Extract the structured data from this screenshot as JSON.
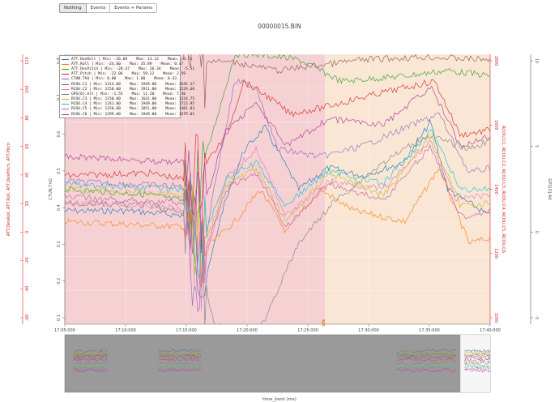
{
  "toolbar": {
    "buttons": [
      {
        "label": "Nothing",
        "active": true
      },
      {
        "label": "Events",
        "active": false
      },
      {
        "label": "Events + Params",
        "active": false
      }
    ]
  },
  "chart_data": {
    "type": "line",
    "title": "00000015.BIN",
    "xlabel": "time_boot (ms)",
    "x_ticks": [
      "17:05:000",
      "17:10:000",
      "17:15:000",
      "17:20:000",
      "17:25:000",
      "17:30:000",
      "17:35:000",
      "17:40:000"
    ],
    "x_range": [
      "17:05:000",
      "17:40:000"
    ],
    "shaded_regions": [
      {
        "start": "17:05:000",
        "end": "17:26:400",
        "color": "#f5c9cd"
      },
      {
        "start": "17:26:400",
        "end": "17:40:000",
        "color": "#f9e2cd"
      }
    ],
    "event_marker": {
      "text": "LTE",
      "x": "17:26:400",
      "color": "#e07b00"
    },
    "axes": [
      {
        "label": "ATT.DesRoll, ATT.Roll, ATT.DesPitch, ATT.Pitch",
        "side": "left-outer",
        "color": "#d62728",
        "ticks": [
          "120",
          "100",
          "80",
          "60",
          "40",
          "20",
          "0",
          "-20",
          "-40",
          "-60"
        ]
      },
      {
        "label": "CTUN.ThO",
        "side": "left-inner",
        "color": "#555555",
        "ticks": [
          "0.8",
          "0.7",
          "0.6",
          "0.5",
          "0.4",
          "0.3",
          "0.2",
          "0.1"
        ]
      },
      {
        "label": "RCOU.C1, RCOU.C2, RCOU.C3, RCOU.C4, RCOU.C5, RCOU.C6",
        "side": "right-inner",
        "color": "#d62728",
        "ticks": [
          "1800",
          "1600",
          "1400",
          "1200",
          "1000"
        ]
      },
      {
        "label": "GPS[0].Alt",
        "side": "right-outer",
        "color": "#555555",
        "ticks": [
          "10",
          "5",
          "0",
          "-5"
        ]
      }
    ],
    "legend": [
      {
        "name": "ATT.DesRoll",
        "text": "ATT.DesRoll | Min: -26.69    Max: 13.12    Mean: -3.71",
        "color": "#1f77b4"
      },
      {
        "name": "ATT.Roll",
        "text": "ATT.Roll | Min: -24.60    Max: 35.89    Mean: 0.47",
        "color": "#ff7f0e"
      },
      {
        "name": "ATT.DesPitch",
        "text": "ATT.DesPitch | Min: -28.47    Max: 26.34    Mean: -5.51",
        "color": "#2ca02c"
      },
      {
        "name": "ATT.Pitch",
        "text": "ATT.Pitch | Min: -22.06    Max: 59.22    Mean: 2.59",
        "color": "#d62728"
      },
      {
        "name": "CTUN.ThO",
        "text": "CTUN.ThO | Min: 0.00    Max: 1.00    Mean: 0.43",
        "color": "#9467bd"
      },
      {
        "name": "RCOU.C1",
        "text": "RCOU.C1 | Min: 1313.00    Max: 1949.00    Mean: 1645.17",
        "color": "#8c564b"
      },
      {
        "name": "RCOU.C2",
        "text": "RCOU.C2 | Min: 1150.00    Max: 1911.00    Mean: 1529.60",
        "color": "#e377c2"
      },
      {
        "name": "GPS[0].Alt",
        "text": "GPS[0].Alt | Min: -1.55    Max: 11.20    Mean: 7.50",
        "color": "#7f7f7f"
      },
      {
        "name": "RCOU.C3",
        "text": "RCOU.C3 | Min: 1150.00    Max: 1641.00    Mean: 1324.75",
        "color": "#bcbd22"
      },
      {
        "name": "RCOU.C4",
        "text": "RCOU.C4 | Min: 1241.00    Max: 1949.00    Mean: 1723.95",
        "color": "#17becf"
      },
      {
        "name": "RCOU.C5",
        "text": "RCOU.C5 | Min: 1150.00    Max: 1851.00    Mean: 1481.83",
        "color": "#c55d9b"
      },
      {
        "name": "RCOU.C6",
        "text": "RCOU.C6 | Min: 1299.00    Max: 1949.00    Mean: 1679.01",
        "color": "#aa3399"
      }
    ],
    "series_shape": {
      "ATT.DesRoll": [
        [
          0,
          0.58
        ],
        [
          0.15,
          0.58
        ],
        [
          0.3,
          0.6
        ],
        [
          0.33,
          0.85
        ],
        [
          0.37,
          0.58
        ],
        [
          0.42,
          0.36
        ],
        [
          0.47,
          0.27
        ],
        [
          0.55,
          0.5
        ],
        [
          0.62,
          0.42
        ],
        [
          0.7,
          0.45
        ],
        [
          0.8,
          0.4
        ],
        [
          0.86,
          0.25
        ],
        [
          0.9,
          0.5
        ],
        [
          1,
          0.6
        ]
      ],
      "ATT.Roll": [
        [
          0,
          0.62
        ],
        [
          0.3,
          0.64
        ],
        [
          0.33,
          0.72
        ],
        [
          0.4,
          0.62
        ],
        [
          0.46,
          0.5
        ],
        [
          0.52,
          0.66
        ],
        [
          0.6,
          0.5
        ],
        [
          0.68,
          0.58
        ],
        [
          0.8,
          0.62
        ],
        [
          0.88,
          0.42
        ],
        [
          0.95,
          0.7
        ],
        [
          1,
          0.68
        ]
      ],
      "ATT.DesPitch": [
        [
          0,
          0.5
        ],
        [
          0.2,
          0.52
        ],
        [
          0.3,
          0.55
        ],
        [
          0.4,
          0.0
        ],
        [
          0.45,
          0.0
        ],
        [
          0.55,
          0.02
        ],
        [
          0.65,
          0.1
        ],
        [
          0.8,
          0.08
        ],
        [
          0.9,
          0.06
        ],
        [
          1,
          0.08
        ]
      ],
      "ATT.Pitch": [
        [
          0,
          0.45
        ],
        [
          0.2,
          0.44
        ],
        [
          0.3,
          0.47
        ],
        [
          0.38,
          0.3
        ],
        [
          0.42,
          0.1
        ],
        [
          0.48,
          0.16
        ],
        [
          0.53,
          0.22
        ],
        [
          0.6,
          0.2
        ],
        [
          0.75,
          0.14
        ],
        [
          0.87,
          0.1
        ],
        [
          0.93,
          0.3
        ],
        [
          1,
          0.28
        ]
      ],
      "CTUN.ThO": [
        [
          0,
          0.47
        ],
        [
          0.28,
          0.49
        ],
        [
          0.31,
          0.9
        ],
        [
          0.35,
          0.5
        ],
        [
          0.4,
          0.1
        ],
        [
          0.45,
          0.12
        ],
        [
          0.5,
          0.35
        ],
        [
          0.6,
          0.38
        ],
        [
          0.7,
          0.34
        ],
        [
          0.88,
          0.22
        ],
        [
          0.95,
          0.44
        ],
        [
          1,
          0.42
        ]
      ],
      "RCOU.C1": [
        [
          0,
          0.03
        ],
        [
          0.15,
          0.04
        ],
        [
          0.28,
          0.02
        ],
        [
          0.4,
          0.03
        ],
        [
          0.5,
          0.06
        ],
        [
          0.7,
          0.02
        ],
        [
          0.85,
          0.01
        ],
        [
          1,
          0.02
        ]
      ],
      "RCOU.C2": [
        [
          0,
          0.55
        ],
        [
          0.28,
          0.57
        ],
        [
          0.32,
          0.82
        ],
        [
          0.38,
          0.46
        ],
        [
          0.45,
          0.35
        ],
        [
          0.52,
          0.6
        ],
        [
          0.62,
          0.47
        ],
        [
          0.75,
          0.5
        ],
        [
          0.86,
          0.32
        ],
        [
          0.92,
          0.54
        ],
        [
          1,
          0.52
        ]
      ],
      "GPS[0].Alt": [
        [
          0,
          0.55
        ],
        [
          0.2,
          0.56
        ],
        [
          0.3,
          0.6
        ],
        [
          0.35,
          1.0
        ],
        [
          0.45,
          1.05
        ],
        [
          0.55,
          0.7
        ],
        [
          0.63,
          0.55
        ],
        [
          0.75,
          0.4
        ],
        [
          0.85,
          0.3
        ],
        [
          0.95,
          0.35
        ],
        [
          1,
          0.32
        ]
      ],
      "RCOU.C3": [
        [
          0,
          0.5
        ],
        [
          0.28,
          0.52
        ],
        [
          0.32,
          0.74
        ],
        [
          0.38,
          0.48
        ],
        [
          0.45,
          0.42
        ],
        [
          0.52,
          0.62
        ],
        [
          0.62,
          0.44
        ],
        [
          0.75,
          0.52
        ],
        [
          0.86,
          0.3
        ],
        [
          0.93,
          0.56
        ],
        [
          1,
          0.55
        ]
      ],
      "RCOU.C4": [
        [
          0,
          0.48
        ],
        [
          0.28,
          0.5
        ],
        [
          0.32,
          0.7
        ],
        [
          0.38,
          0.46
        ],
        [
          0.45,
          0.4
        ],
        [
          0.52,
          0.56
        ],
        [
          0.62,
          0.43
        ],
        [
          0.75,
          0.48
        ],
        [
          0.86,
          0.28
        ],
        [
          0.93,
          0.5
        ],
        [
          1,
          0.5
        ]
      ],
      "RCOU.C5": [
        [
          0,
          0.53
        ],
        [
          0.28,
          0.55
        ],
        [
          0.32,
          0.78
        ],
        [
          0.38,
          0.5
        ],
        [
          0.45,
          0.44
        ],
        [
          0.52,
          0.64
        ],
        [
          0.62,
          0.48
        ],
        [
          0.75,
          0.54
        ],
        [
          0.86,
          0.34
        ],
        [
          0.93,
          0.6
        ],
        [
          1,
          0.58
        ]
      ],
      "RCOU.C6": [
        [
          0,
          0.38
        ],
        [
          0.28,
          0.4
        ],
        [
          0.32,
          0.6
        ],
        [
          0.38,
          0.28
        ],
        [
          0.45,
          0.18
        ],
        [
          0.52,
          0.34
        ],
        [
          0.62,
          0.24
        ],
        [
          0.75,
          0.26
        ],
        [
          0.86,
          0.12
        ],
        [
          0.93,
          0.34
        ],
        [
          1,
          0.3
        ]
      ]
    }
  }
}
